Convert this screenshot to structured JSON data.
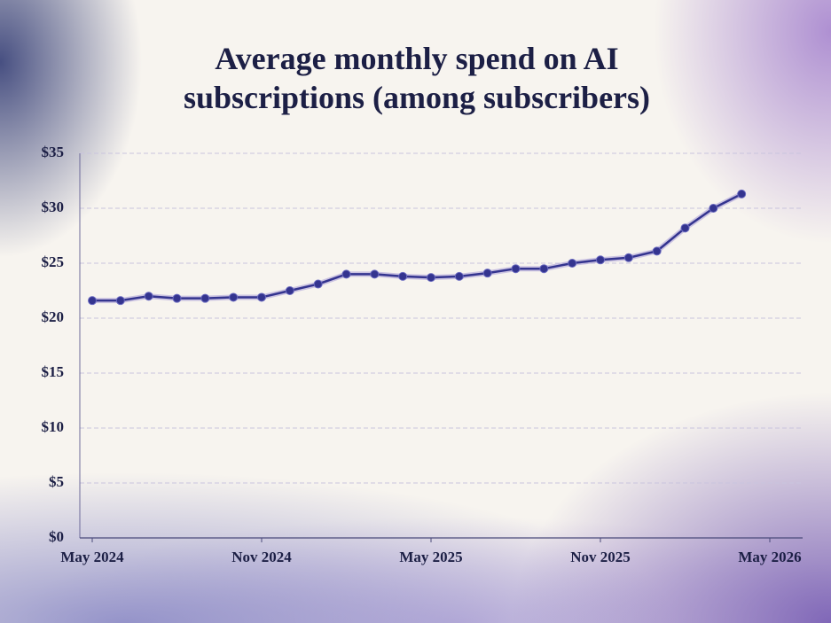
{
  "chart_data": {
    "type": "line",
    "title": "Average monthly spend on AI subscriptions (among subscribers)",
    "x": [
      "2024-05",
      "2024-06",
      "2024-07",
      "2024-08",
      "2024-09",
      "2024-10",
      "2024-11",
      "2024-12",
      "2025-01",
      "2025-02",
      "2025-03",
      "2025-04",
      "2025-05",
      "2025-06",
      "2025-07",
      "2025-08",
      "2025-09",
      "2025-10",
      "2025-11",
      "2025-12",
      "2026-01",
      "2026-02",
      "2026-03",
      "2026-04"
    ],
    "series": [
      {
        "name": "Average monthly spend",
        "color": "#34348f",
        "values": [
          21.6,
          21.6,
          22.0,
          21.8,
          21.8,
          21.9,
          21.9,
          22.5,
          23.1,
          24.0,
          24.0,
          23.8,
          23.7,
          23.8,
          24.1,
          24.5,
          24.5,
          25.0,
          25.3,
          25.5,
          26.1,
          28.2,
          30.0,
          31.3
        ]
      }
    ],
    "xlim": [
      "2024-05",
      "2026-05"
    ],
    "xticks": [
      {
        "value": "2024-05",
        "label": "May 2024"
      },
      {
        "value": "2024-11",
        "label": "Nov 2024"
      },
      {
        "value": "2025-05",
        "label": "May 2025"
      },
      {
        "value": "2025-11",
        "label": "Nov 2025"
      },
      {
        "value": "2026-05",
        "label": "May 2026"
      }
    ],
    "ylim": [
      0,
      35
    ],
    "yticks": [
      {
        "value": 0,
        "label": "$0"
      },
      {
        "value": 5,
        "label": "$5"
      },
      {
        "value": 10,
        "label": "$10"
      },
      {
        "value": 15,
        "label": "$15"
      },
      {
        "value": 20,
        "label": "$20"
      },
      {
        "value": 25,
        "label": "$25"
      },
      {
        "value": 30,
        "label": "$30"
      },
      {
        "value": 35,
        "label": "$35"
      }
    ],
    "grid": true
  }
}
